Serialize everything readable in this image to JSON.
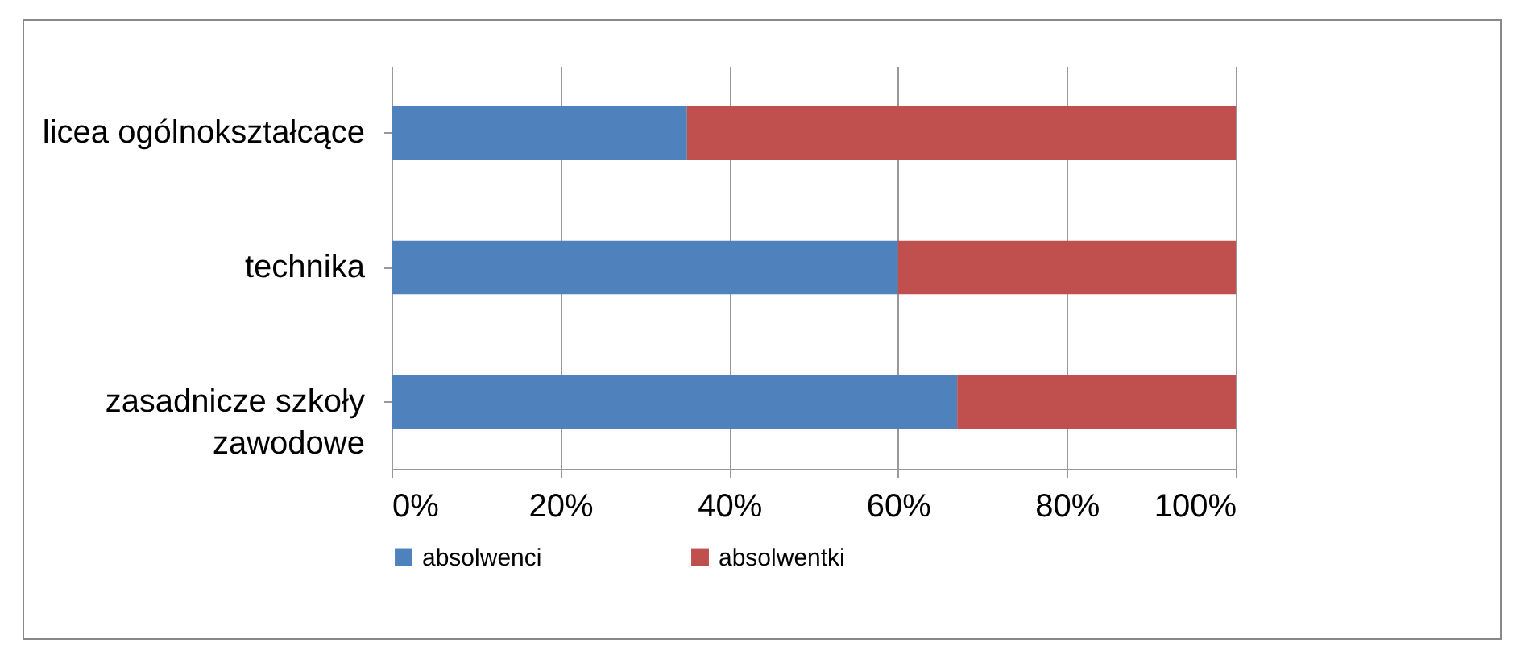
{
  "chart_data": {
    "type": "bar",
    "orientation": "horizontal",
    "stacked": true,
    "categories": [
      "licea ogólnokształcące",
      "technika",
      "zasadnicze szkoły zawodowe"
    ],
    "series": [
      {
        "name": "absolwenci",
        "color": "#4f81bd",
        "values": [
          35,
          60,
          67
        ]
      },
      {
        "name": "absolwentki",
        "color": "#c0504d",
        "values": [
          65,
          40,
          33
        ]
      }
    ],
    "xlim": [
      0,
      100
    ],
    "xticks": [
      {
        "value": 0,
        "label": "0%"
      },
      {
        "value": 20,
        "label": "20%"
      },
      {
        "value": 40,
        "label": "40%"
      },
      {
        "value": 60,
        "label": "60%"
      },
      {
        "value": 80,
        "label": "80%"
      },
      {
        "value": 100,
        "label": "100%"
      }
    ],
    "grid": "x",
    "legend": "bottom"
  }
}
